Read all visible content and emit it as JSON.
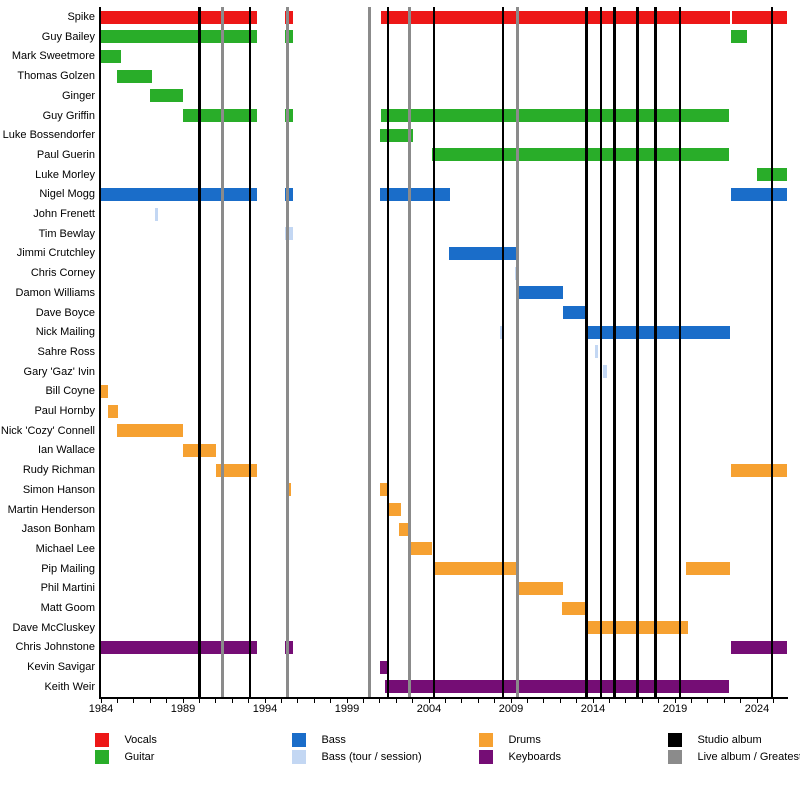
{
  "chart_data": {
    "type": "timeline",
    "description": "Band members timeline chart, rows = members, x-axis = years",
    "x_axis": {
      "start": 1984,
      "end": 2025.9,
      "major_tick_labels": [
        1984,
        1989,
        1994,
        1999,
        2004,
        2009,
        2014,
        2019,
        2024
      ],
      "minor_tick_step": 1,
      "minor_tick_end": 2025
    },
    "colors": {
      "vocals": "#ed1717",
      "guitar": "#29ad29",
      "bass": "#1a6dc9",
      "bass_session": "#c3d7f3",
      "drums": "#f6a131",
      "keyboards": "#750d75",
      "studio": "#000000",
      "live": "#8b8b8b"
    },
    "rows": [
      {
        "name": "Spike",
        "instrument": "vocals",
        "segments": [
          [
            1984.0,
            1993.5
          ],
          [
            1995.2,
            1995.7
          ],
          [
            2001.1,
            2022.35
          ],
          [
            2022.5,
            2025.8
          ]
        ]
      },
      {
        "name": "Guy Bailey",
        "instrument": "guitar",
        "segments": [
          [
            1984.0,
            1993.5
          ],
          [
            1995.2,
            1995.7
          ],
          [
            2022.4,
            2023.4
          ]
        ]
      },
      {
        "name": "Mark Sweetmore",
        "instrument": "guitar",
        "segments": [
          [
            1984.0,
            1985.2
          ]
        ]
      },
      {
        "name": "Thomas Golzen",
        "instrument": "guitar",
        "segments": [
          [
            1985.0,
            1987.1
          ]
        ]
      },
      {
        "name": "Ginger",
        "instrument": "guitar",
        "segments": [
          [
            1987.0,
            1989.0
          ]
        ]
      },
      {
        "name": "Guy Griffin",
        "instrument": "guitar",
        "segments": [
          [
            1989.0,
            1993.5
          ],
          [
            1995.2,
            1995.7
          ],
          [
            2001.1,
            2022.3
          ]
        ]
      },
      {
        "name": "Luke Bossendorfer",
        "instrument": "guitar",
        "segments": [
          [
            2001.0,
            2003.0
          ]
        ]
      },
      {
        "name": "Paul Guerin",
        "instrument": "guitar",
        "segments": [
          [
            2004.2,
            2022.3
          ]
        ]
      },
      {
        "name": "Luke Morley",
        "instrument": "guitar",
        "segments": [
          [
            2024.0,
            2025.8
          ]
        ]
      },
      {
        "name": "Nigel Mogg",
        "instrument": "bass",
        "segments": [
          [
            1984.0,
            1993.5
          ],
          [
            1995.2,
            1995.7
          ],
          [
            2001.0,
            2005.3
          ],
          [
            2022.4,
            2025.8
          ]
        ]
      },
      {
        "name": "John Frenett",
        "instrument": "bass_session",
        "segments": [
          [
            1987.3,
            1987.5
          ]
        ]
      },
      {
        "name": "Tim Bewlay",
        "instrument": "bass_session",
        "segments": [
          [
            1995.2,
            1995.7
          ]
        ]
      },
      {
        "name": "Jimmi Crutchley",
        "instrument": "bass",
        "segments": [
          [
            2005.2,
            2009.4
          ]
        ]
      },
      {
        "name": "Chris Corney",
        "instrument": "bass_session",
        "segments": [
          [
            2009.25,
            2009.45
          ]
        ]
      },
      {
        "name": "Damon Williams",
        "instrument": "bass",
        "segments": [
          [
            2009.4,
            2012.2
          ]
        ]
      },
      {
        "name": "Dave Boyce",
        "instrument": "bass",
        "segments": [
          [
            2012.2,
            2013.5
          ]
        ]
      },
      {
        "name": "Nick Mailing",
        "instrument": "bass",
        "segments": [
          [
            2008.3,
            2008.5,
            "bass_session"
          ],
          [
            2013.5,
            2022.35
          ]
        ]
      },
      {
        "name": "Sahre Ross",
        "instrument": "bass_session",
        "segments": [
          [
            2014.1,
            2014.3
          ]
        ]
      },
      {
        "name": "Gary 'Gaz' Ivin",
        "instrument": "bass_session",
        "segments": [
          [
            2014.6,
            2014.85
          ]
        ]
      },
      {
        "name": "Bill Coyne",
        "instrument": "drums",
        "segments": [
          [
            1984.0,
            1984.45
          ]
        ]
      },
      {
        "name": "Paul Hornby",
        "instrument": "drums",
        "segments": [
          [
            1984.45,
            1985.05
          ]
        ]
      },
      {
        "name": "Nick 'Cozy' Connell",
        "instrument": "drums",
        "segments": [
          [
            1985.0,
            1989.0
          ]
        ]
      },
      {
        "name": "Ian Wallace",
        "instrument": "drums",
        "segments": [
          [
            1989.0,
            1991.0
          ]
        ]
      },
      {
        "name": "Rudy Richman",
        "instrument": "drums",
        "segments": [
          [
            1991.0,
            1993.5
          ],
          [
            2022.4,
            2025.8
          ]
        ]
      },
      {
        "name": "Simon Hanson",
        "instrument": "drums",
        "segments": [
          [
            1995.3,
            1995.6
          ],
          [
            2001.0,
            2001.5
          ]
        ]
      },
      {
        "name": "Martin Henderson",
        "instrument": "drums",
        "segments": [
          [
            2001.5,
            2002.3
          ]
        ]
      },
      {
        "name": "Jason Bonham",
        "instrument": "drums",
        "segments": [
          [
            2002.2,
            2002.9
          ]
        ]
      },
      {
        "name": "Michael Lee",
        "instrument": "drums",
        "segments": [
          [
            2002.8,
            2004.2
          ]
        ]
      },
      {
        "name": "Pip Mailing",
        "instrument": "drums",
        "segments": [
          [
            2004.3,
            2009.5
          ],
          [
            2019.7,
            2022.35
          ]
        ]
      },
      {
        "name": "Phil Martini",
        "instrument": "drums",
        "segments": [
          [
            2009.4,
            2012.2
          ]
        ]
      },
      {
        "name": "Matt Goom",
        "instrument": "drums",
        "segments": [
          [
            2012.1,
            2013.5
          ]
        ]
      },
      {
        "name": "Dave McCluskey",
        "instrument": "drums",
        "segments": [
          [
            2013.5,
            2019.8
          ]
        ]
      },
      {
        "name": "Chris Johnstone",
        "instrument": "keyboards",
        "segments": [
          [
            1984.0,
            1993.5
          ],
          [
            1995.2,
            1995.7
          ],
          [
            2022.4,
            2025.8
          ]
        ]
      },
      {
        "name": "Kevin Savigar",
        "instrument": "keyboards",
        "segments": [
          [
            2001.0,
            2001.5
          ]
        ]
      },
      {
        "name": "Keith Weir",
        "instrument": "keyboards",
        "segments": [
          [
            2001.3,
            2022.3
          ]
        ]
      }
    ],
    "events": {
      "studio_album": [
        1990.0,
        1993.1,
        2001.5,
        2004.3,
        2008.5,
        2013.6,
        2014.5,
        2015.3,
        2016.7,
        2017.8,
        2019.3,
        2024.9
      ],
      "live_album_or_greatest_hits": [
        1991.4,
        1995.4,
        2000.4,
        2002.8,
        2009.4
      ]
    },
    "legend": [
      {
        "label": "Vocals",
        "color_key": "vocals"
      },
      {
        "label": "Guitar",
        "color_key": "guitar"
      },
      {
        "label": "Bass",
        "color_key": "bass"
      },
      {
        "label": "Bass (tour / session)",
        "color_key": "bass_session"
      },
      {
        "label": "Drums",
        "color_key": "drums"
      },
      {
        "label": "Keyboards",
        "color_key": "keyboards"
      },
      {
        "label": "Studio album",
        "color_key": "studio"
      },
      {
        "label": "Live album / Greatest Hits",
        "color_key": "live"
      }
    ]
  }
}
